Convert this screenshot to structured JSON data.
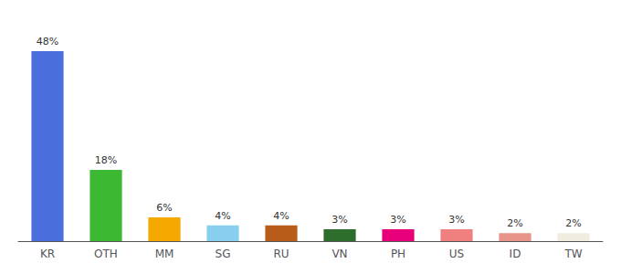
{
  "chart_data": {
    "type": "bar",
    "categories": [
      "KR",
      "OTH",
      "MM",
      "SG",
      "RU",
      "VN",
      "PH",
      "US",
      "ID",
      "TW"
    ],
    "values": [
      48,
      18,
      6,
      4,
      4,
      3,
      3,
      3,
      2,
      2
    ],
    "value_labels": [
      "48%",
      "18%",
      "6%",
      "4%",
      "4%",
      "3%",
      "3%",
      "3%",
      "2%",
      "2%"
    ],
    "colors": [
      "#4a6edb",
      "#3cb832",
      "#f5a800",
      "#87ceef",
      "#b85c1a",
      "#2d6e2d",
      "#e8007b",
      "#f08080",
      "#e8948a",
      "#f0ece0"
    ],
    "ylim": [
      0,
      54
    ],
    "data_labels": true,
    "tick_labels": "x",
    "grid": false
  }
}
